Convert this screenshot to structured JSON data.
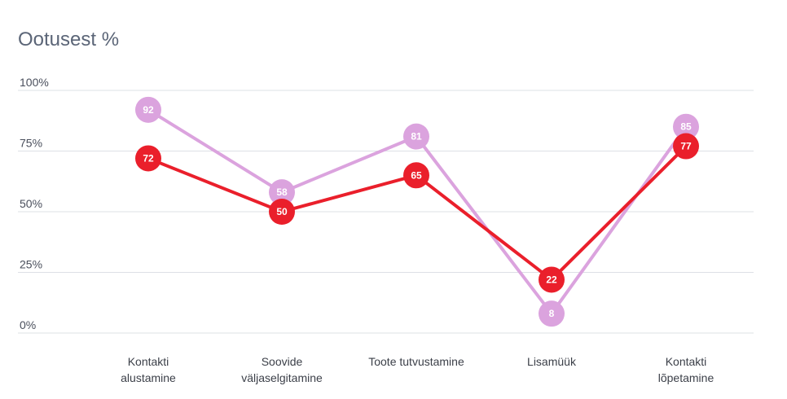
{
  "chart_data": {
    "type": "line",
    "title": "Ootusest %",
    "xlabel": "",
    "ylabel": "",
    "ylim": [
      0,
      100
    ],
    "yticks": [
      "0%",
      "25%",
      "50%",
      "75%",
      "100%"
    ],
    "ytick_values": [
      0,
      25,
      50,
      75,
      100
    ],
    "grid": true,
    "categories": [
      [
        "Kontakti",
        "alustamine"
      ],
      [
        "Soovide",
        "väljaselgitamine"
      ],
      [
        "Toote tutvustamine"
      ],
      [
        "Lisamüük"
      ],
      [
        "Kontakti",
        "lõpetamine"
      ]
    ],
    "series": [
      {
        "values": [
          92,
          58,
          81,
          8,
          85
        ],
        "color": "#dba3de"
      },
      {
        "values": [
          72,
          50,
          65,
          22,
          77
        ],
        "color": "#ea1f2b"
      }
    ]
  }
}
